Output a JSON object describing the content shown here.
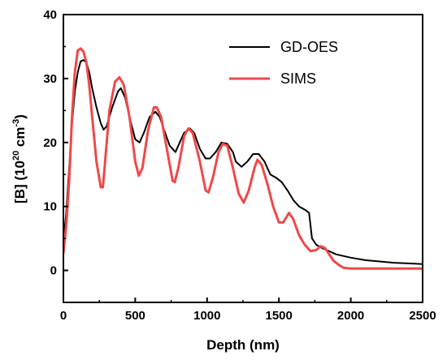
{
  "chart_data": {
    "type": "line",
    "xlabel": "Depth (nm)",
    "ylabel": {
      "prefix": "[B] (10",
      "exp1": "20",
      "mid": " cm",
      "exp2": "-3",
      "suffix": ")"
    },
    "xlim": [
      0,
      2500
    ],
    "ylim": [
      -5,
      40
    ],
    "xticks": [
      0,
      500,
      1000,
      1500,
      2000,
      2500
    ],
    "yticks": [
      0,
      10,
      20,
      30,
      40
    ],
    "grid": false,
    "legend_position": "top-right",
    "series": [
      {
        "name": "GD-OES",
        "color": "#000000",
        "x": [
          0,
          20,
          40,
          60,
          80,
          100,
          120,
          140,
          160,
          180,
          200,
          230,
          260,
          280,
          300,
          340,
          380,
          400,
          430,
          460,
          500,
          530,
          560,
          600,
          640,
          670,
          700,
          740,
          780,
          800,
          840,
          880,
          910,
          950,
          990,
          1020,
          1060,
          1100,
          1140,
          1180,
          1200,
          1240,
          1280,
          1320,
          1360,
          1400,
          1440,
          1480,
          1520,
          1560,
          1600,
          1640,
          1680,
          1710,
          1730,
          1760,
          1800,
          1850,
          1900,
          2000,
          2100,
          2200,
          2300,
          2400,
          2500
        ],
        "y": [
          4.5,
          9,
          16,
          23,
          28,
          31,
          32.7,
          32.9,
          32.5,
          31,
          28.5,
          25.5,
          23,
          22,
          22.5,
          25.5,
          28,
          28.5,
          27,
          24,
          20.5,
          20,
          21.5,
          24,
          24.8,
          24,
          22,
          19.5,
          18.5,
          19.5,
          21.5,
          22.2,
          21.5,
          19,
          17.5,
          17.5,
          18.5,
          20,
          19.8,
          18.5,
          17,
          16.2,
          17,
          18.2,
          18.2,
          17,
          15,
          14.5,
          13.8,
          12.5,
          11,
          10,
          9.5,
          9,
          5,
          4,
          3.5,
          3,
          2.5,
          2,
          1.6,
          1.4,
          1.2,
          1.1,
          1.0
        ]
      },
      {
        "name": "SIMS",
        "color": "#f04848",
        "x": [
          0,
          20,
          40,
          60,
          80,
          100,
          120,
          140,
          160,
          180,
          200,
          230,
          260,
          275,
          290,
          320,
          360,
          390,
          420,
          460,
          500,
          525,
          550,
          590,
          630,
          650,
          680,
          720,
          760,
          775,
          800,
          840,
          870,
          900,
          950,
          990,
          1010,
          1040,
          1080,
          1110,
          1140,
          1180,
          1220,
          1255,
          1290,
          1330,
          1350,
          1380,
          1420,
          1460,
          1500,
          1530,
          1570,
          1600,
          1640,
          1680,
          1720,
          1760,
          1790,
          1820,
          1850,
          1880,
          1920,
          1950,
          2000,
          2100,
          2200,
          2300,
          2400,
          2500
        ],
        "y": [
          2.7,
          7,
          14,
          24,
          31,
          34.4,
          34.7,
          34.2,
          32.5,
          29,
          24,
          17,
          13,
          13,
          17,
          25,
          29.5,
          30.2,
          29,
          24,
          17,
          14.8,
          16,
          22,
          25.5,
          25.5,
          24,
          19,
          14,
          13.8,
          16,
          21,
          22.2,
          21.5,
          17,
          12.5,
          12.2,
          14.5,
          18.5,
          19.8,
          19.5,
          16,
          12,
          10.6,
          12.5,
          16,
          17.3,
          16.5,
          13.5,
          10,
          7.5,
          7.5,
          9,
          8,
          5.5,
          4,
          3,
          3.2,
          3.8,
          3.5,
          2.5,
          1.5,
          0.8,
          0.4,
          0.3,
          0.3,
          0.3,
          0.3,
          0.3,
          0.3
        ]
      }
    ]
  }
}
